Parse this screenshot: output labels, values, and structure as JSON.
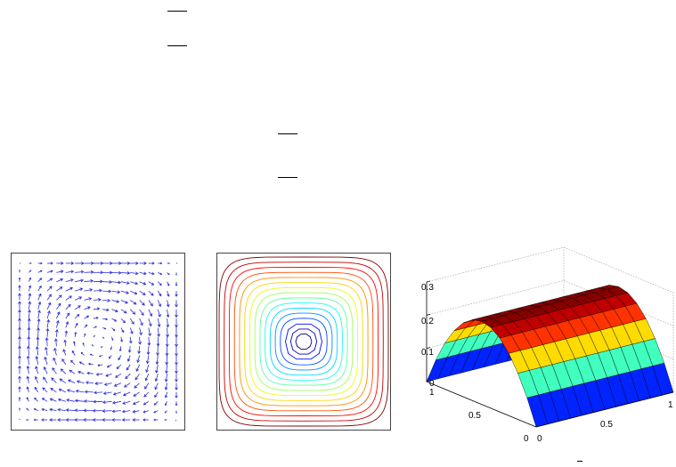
{
  "figure": {
    "panels": [
      {
        "kind": "vector-field",
        "color": "#2a2ad6"
      },
      {
        "kind": "contour",
        "levels": 16
      },
      {
        "kind": "surface"
      }
    ],
    "surface_axes": {
      "z_ticks": [
        "0",
        "0.1",
        "0.2",
        "0.3"
      ],
      "left_ticks": [
        "0",
        "0.5",
        "1"
      ],
      "right_ticks": [
        "0",
        "0.5",
        "1"
      ]
    }
  },
  "chart_data": {
    "type": "surface",
    "function": "parabolic profile along y, constant along x",
    "zlim": [
      0,
      0.3
    ],
    "xlim": [
      0,
      1
    ],
    "ylim": [
      0,
      1
    ],
    "peak_value": 0.25
  }
}
